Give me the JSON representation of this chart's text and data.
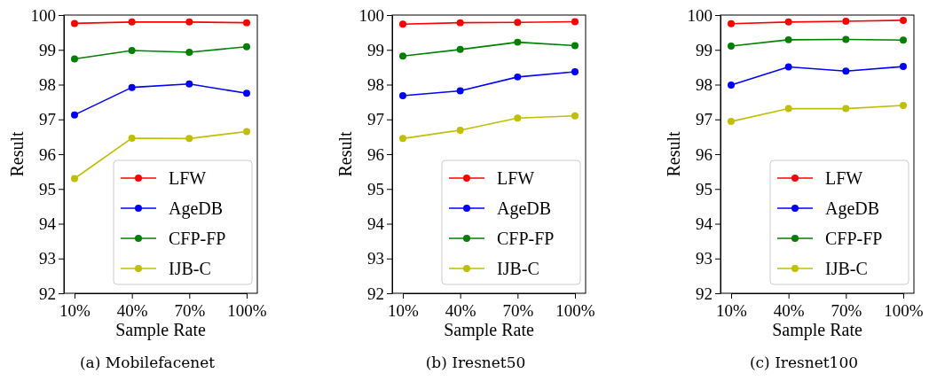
{
  "chart_data": [
    {
      "type": "line",
      "xlabel": "Sample Rate",
      "ylabel": "Result",
      "categories": [
        "10%",
        "40%",
        "70%",
        "100%"
      ],
      "ylim": [
        92,
        100
      ],
      "yticks": [
        92,
        93,
        94,
        95,
        96,
        97,
        98,
        99,
        100
      ],
      "marker": "circle",
      "legend": "bottom right",
      "annotations": [
        "(a)  Mobilefacenet"
      ],
      "series": [
        {
          "name": "LFW",
          "color": "#ff0000",
          "values": [
            99.76,
            99.8,
            99.8,
            99.78
          ]
        },
        {
          "name": "AgeDB",
          "color": "#0000ff",
          "values": [
            97.13,
            97.92,
            98.02,
            97.75
          ]
        },
        {
          "name": "CFP-FP",
          "color": "#008000",
          "values": [
            98.74,
            98.98,
            98.93,
            99.09
          ]
        },
        {
          "name": "IJB-C",
          "color": "#bfbf00",
          "values": [
            95.3,
            96.46,
            96.45,
            96.65
          ]
        }
      ]
    },
    {
      "type": "line",
      "xlabel": "Sample Rate",
      "ylabel": "Result",
      "categories": [
        "10%",
        "40%",
        "70%",
        "100%"
      ],
      "ylim": [
        92,
        100
      ],
      "yticks": [
        92,
        93,
        94,
        95,
        96,
        97,
        98,
        99,
        100
      ],
      "marker": "circle",
      "legend": "bottom right",
      "annotations": [
        "(b)  Iresnet50"
      ],
      "series": [
        {
          "name": "LFW",
          "color": "#ff0000",
          "values": [
            99.74,
            99.78,
            99.79,
            99.81
          ]
        },
        {
          "name": "AgeDB",
          "color": "#0000ff",
          "values": [
            97.68,
            97.82,
            98.22,
            98.37
          ]
        },
        {
          "name": "CFP-FP",
          "color": "#008000",
          "values": [
            98.82,
            99.01,
            99.22,
            99.12
          ]
        },
        {
          "name": "IJB-C",
          "color": "#bfbf00",
          "values": [
            96.45,
            96.69,
            97.04,
            97.1
          ]
        }
      ]
    },
    {
      "type": "line",
      "xlabel": "Sample Rate",
      "ylabel": "Result",
      "categories": [
        "10%",
        "40%",
        "70%",
        "100%"
      ],
      "ylim": [
        92,
        100
      ],
      "yticks": [
        92,
        93,
        94,
        95,
        96,
        97,
        98,
        99,
        100
      ],
      "marker": "circle",
      "legend": "bottom right",
      "annotations": [
        "(c)  Iresnet100"
      ],
      "series": [
        {
          "name": "LFW",
          "color": "#ff0000",
          "values": [
            99.75,
            99.8,
            99.82,
            99.85
          ]
        },
        {
          "name": "AgeDB",
          "color": "#0000ff",
          "values": [
            97.99,
            98.51,
            98.39,
            98.52
          ]
        },
        {
          "name": "CFP-FP",
          "color": "#008000",
          "values": [
            99.11,
            99.29,
            99.3,
            99.28
          ]
        },
        {
          "name": "IJB-C",
          "color": "#bfbf00",
          "values": [
            96.94,
            97.31,
            97.31,
            97.4
          ]
        }
      ]
    }
  ]
}
